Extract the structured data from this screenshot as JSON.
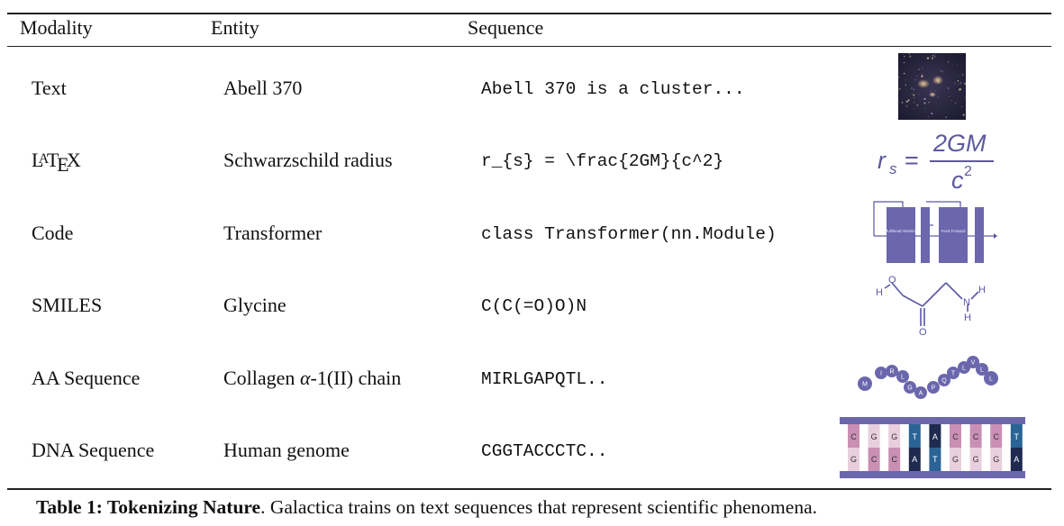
{
  "table": {
    "headers": {
      "modality": "Modality",
      "entity": "Entity",
      "sequence": "Sequence"
    },
    "rows": [
      {
        "modality": "Text",
        "entity": "Abell 370",
        "sequence": "Abell 370 is a cluster..."
      },
      {
        "modality": "LaTeX",
        "entity": "Schwarzschild radius",
        "sequence": "r_{s} = \\frac{2GM}{c^2}"
      },
      {
        "modality": "Code",
        "entity": "Transformer",
        "sequence": "class Transformer(nn.Module)"
      },
      {
        "modality": "SMILES",
        "entity": "Glycine",
        "sequence": "C(C(=O)O)N"
      },
      {
        "modality": "AA Sequence",
        "entity_prefix": "Collagen ",
        "entity_alpha": "α",
        "entity_suffix": "-1(II) chain",
        "sequence": "MIRLGAPQTL.."
      },
      {
        "modality": "DNA Sequence",
        "entity": "Human genome",
        "sequence": "CGGTACCCTC.."
      }
    ]
  },
  "images": {
    "formula": {
      "lhs": "r",
      "sub": "s",
      "num": "2GM",
      "den": "c",
      "sup": "2"
    },
    "transformer": {
      "block1": "Multihead Attention",
      "norm": "Add & Norm",
      "block2": "Feed Forward"
    },
    "glycine": {
      "o_top": "O",
      "h_left": "H",
      "n": "N",
      "h1": "H",
      "h2": "H",
      "o_bottom": "O"
    },
    "aa_beads": [
      "M",
      "I",
      "R",
      "L",
      "G",
      "A",
      "P",
      "Q",
      "T",
      "L",
      "V",
      "L",
      "L"
    ],
    "dna_top": [
      "C",
      "G",
      "G",
      "T",
      "A",
      "C",
      "C",
      "C",
      "T"
    ],
    "dna_bottom": [
      "G",
      "C",
      "C",
      "A",
      "T",
      "G",
      "G",
      "G",
      "A"
    ],
    "colors": {
      "purple": "#6b67ad",
      "pink": "#c98fb4",
      "light_pink": "#e9cfdd",
      "blue": "#2a6496",
      "dark": "#1f2a50"
    }
  },
  "caption": {
    "label": "Table 1: Tokenizing Nature",
    "text": ". Galactica trains on text sequences that represent scientific phenomena."
  }
}
